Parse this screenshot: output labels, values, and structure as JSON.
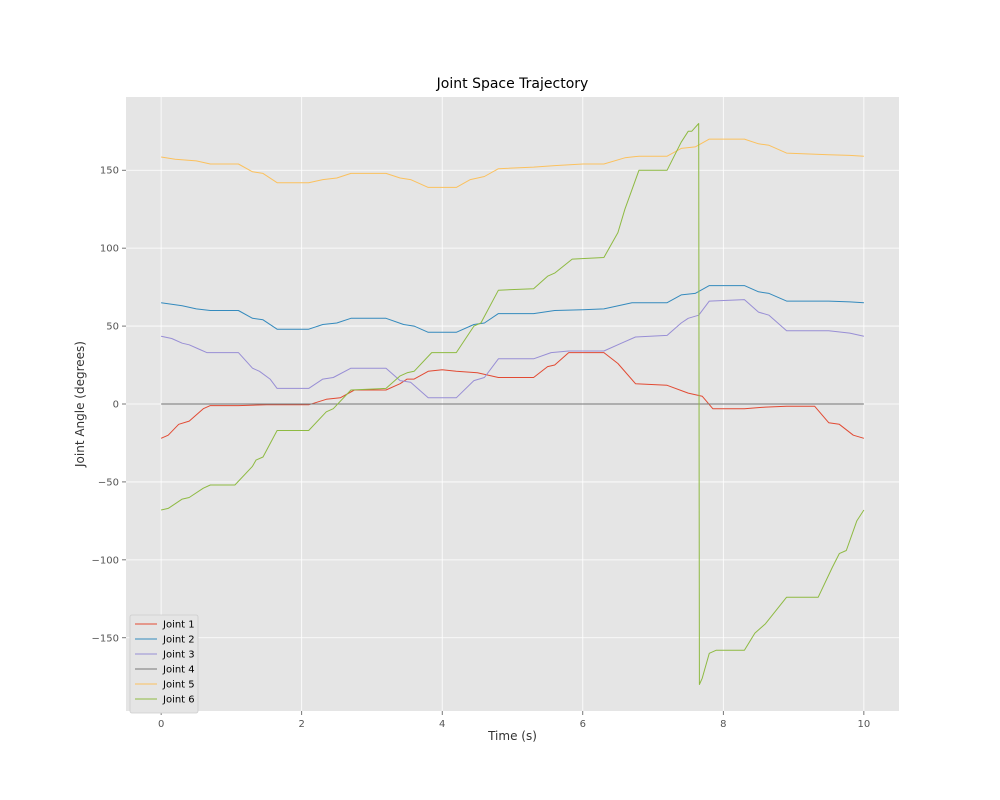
{
  "chart_data": {
    "type": "line",
    "title": "Joint Space Trajectory",
    "xlabel": "Time (s)",
    "ylabel": "Joint Angle (degrees)",
    "xlim": [
      -0.5,
      10.5
    ],
    "ylim": [
      -197,
      197
    ],
    "xticks": [
      0,
      2,
      4,
      6,
      8,
      10
    ],
    "yticks": [
      -150,
      -100,
      -50,
      0,
      50,
      100,
      150
    ],
    "xtick_labels": [
      "0",
      "2",
      "4",
      "6",
      "8",
      "10"
    ],
    "ytick_labels": [
      "−150",
      "−100",
      "−50",
      "0",
      "50",
      "100",
      "150"
    ],
    "grid": true,
    "legend_position": "lower-left",
    "background": "#e5e5e5",
    "series": [
      {
        "name": "Joint 1",
        "color": "#e24a33",
        "points": [
          [
            0,
            -22
          ],
          [
            0.1,
            -20
          ],
          [
            0.25,
            -13
          ],
          [
            0.4,
            -11
          ],
          [
            0.6,
            -3
          ],
          [
            0.7,
            -1
          ],
          [
            1.1,
            -1
          ],
          [
            1.5,
            -0.5
          ],
          [
            2.1,
            -0.5
          ],
          [
            2.35,
            3
          ],
          [
            2.55,
            4
          ],
          [
            2.75,
            9
          ],
          [
            3.2,
            9
          ],
          [
            3.4,
            13
          ],
          [
            3.5,
            16
          ],
          [
            3.6,
            16
          ],
          [
            3.8,
            21
          ],
          [
            4.0,
            22
          ],
          [
            4.2,
            21
          ],
          [
            4.5,
            20
          ],
          [
            4.8,
            17
          ],
          [
            5.3,
            17
          ],
          [
            5.5,
            24
          ],
          [
            5.6,
            25
          ],
          [
            5.8,
            33
          ],
          [
            6.3,
            33
          ],
          [
            6.5,
            26
          ],
          [
            6.75,
            13
          ],
          [
            7.2,
            12
          ],
          [
            7.5,
            7
          ],
          [
            7.7,
            5
          ],
          [
            7.85,
            -3
          ],
          [
            8.3,
            -3
          ],
          [
            8.6,
            -2
          ],
          [
            8.9,
            -1.5
          ],
          [
            9.3,
            -1.5
          ],
          [
            9.5,
            -12
          ],
          [
            9.65,
            -13
          ],
          [
            9.85,
            -20
          ],
          [
            10,
            -22
          ]
        ]
      },
      {
        "name": "Joint 2",
        "color": "#348abd",
        "points": [
          [
            0,
            65
          ],
          [
            0.3,
            63
          ],
          [
            0.5,
            61
          ],
          [
            0.7,
            60
          ],
          [
            1.1,
            60
          ],
          [
            1.3,
            55
          ],
          [
            1.45,
            54
          ],
          [
            1.65,
            48
          ],
          [
            2.1,
            48
          ],
          [
            2.3,
            51
          ],
          [
            2.5,
            52
          ],
          [
            2.7,
            55
          ],
          [
            3.2,
            55
          ],
          [
            3.45,
            51
          ],
          [
            3.6,
            50
          ],
          [
            3.8,
            46
          ],
          [
            4.2,
            46
          ],
          [
            4.45,
            51
          ],
          [
            4.6,
            52
          ],
          [
            4.8,
            58
          ],
          [
            5.3,
            58
          ],
          [
            5.6,
            60
          ],
          [
            6.0,
            60.5
          ],
          [
            6.3,
            61
          ],
          [
            6.7,
            65
          ],
          [
            7.2,
            65
          ],
          [
            7.4,
            70
          ],
          [
            7.6,
            71
          ],
          [
            7.8,
            76
          ],
          [
            8.3,
            76
          ],
          [
            8.5,
            72
          ],
          [
            8.65,
            71
          ],
          [
            8.9,
            66
          ],
          [
            9.5,
            66
          ],
          [
            9.8,
            65.5
          ],
          [
            10,
            65
          ]
        ]
      },
      {
        "name": "Joint 3",
        "color": "#988ed5",
        "points": [
          [
            0,
            43.5
          ],
          [
            0.15,
            42
          ],
          [
            0.3,
            39
          ],
          [
            0.4,
            38
          ],
          [
            0.55,
            35
          ],
          [
            0.65,
            33
          ],
          [
            1.1,
            33
          ],
          [
            1.3,
            23
          ],
          [
            1.4,
            21
          ],
          [
            1.55,
            16
          ],
          [
            1.65,
            10
          ],
          [
            2.1,
            10
          ],
          [
            2.3,
            16
          ],
          [
            2.45,
            17
          ],
          [
            2.7,
            23
          ],
          [
            3.2,
            23
          ],
          [
            3.4,
            15
          ],
          [
            3.55,
            14
          ],
          [
            3.8,
            4
          ],
          [
            4.2,
            4
          ],
          [
            4.45,
            15
          ],
          [
            4.6,
            17
          ],
          [
            4.8,
            29
          ],
          [
            5.3,
            29
          ],
          [
            5.55,
            33
          ],
          [
            5.8,
            34
          ],
          [
            6.0,
            34
          ],
          [
            6.3,
            34
          ],
          [
            6.55,
            39
          ],
          [
            6.75,
            43
          ],
          [
            7.2,
            44
          ],
          [
            7.4,
            52
          ],
          [
            7.5,
            55
          ],
          [
            7.65,
            57
          ],
          [
            7.8,
            66
          ],
          [
            8.3,
            67
          ],
          [
            8.5,
            59
          ],
          [
            8.65,
            57
          ],
          [
            8.9,
            47
          ],
          [
            9.5,
            47
          ],
          [
            9.8,
            45.5
          ],
          [
            10,
            43.5
          ]
        ]
      },
      {
        "name": "Joint 4",
        "color": "#777777",
        "points": [
          [
            0,
            0
          ],
          [
            10,
            0
          ]
        ]
      },
      {
        "name": "Joint 5",
        "color": "#fbc15e",
        "points": [
          [
            0,
            158.5
          ],
          [
            0.2,
            157
          ],
          [
            0.5,
            156
          ],
          [
            0.7,
            154
          ],
          [
            1.1,
            154
          ],
          [
            1.3,
            149
          ],
          [
            1.45,
            148
          ],
          [
            1.65,
            142
          ],
          [
            2.1,
            142
          ],
          [
            2.3,
            144
          ],
          [
            2.5,
            145
          ],
          [
            2.7,
            148
          ],
          [
            3.2,
            148
          ],
          [
            3.4,
            145
          ],
          [
            3.55,
            144
          ],
          [
            3.8,
            139
          ],
          [
            4.2,
            139
          ],
          [
            4.4,
            144
          ],
          [
            4.6,
            146
          ],
          [
            4.8,
            151
          ],
          [
            5.3,
            152
          ],
          [
            5.6,
            153
          ],
          [
            6.0,
            154
          ],
          [
            6.3,
            154
          ],
          [
            6.6,
            158
          ],
          [
            6.8,
            159
          ],
          [
            7.2,
            159
          ],
          [
            7.4,
            164
          ],
          [
            7.6,
            165
          ],
          [
            7.8,
            170
          ],
          [
            8.3,
            170
          ],
          [
            8.5,
            167
          ],
          [
            8.65,
            166
          ],
          [
            8.9,
            161
          ],
          [
            9.5,
            160
          ],
          [
            9.8,
            159.5
          ],
          [
            10,
            159
          ]
        ]
      },
      {
        "name": "Joint 6",
        "color": "#8eba42",
        "points": [
          [
            0,
            -68
          ],
          [
            0.1,
            -67
          ],
          [
            0.3,
            -61
          ],
          [
            0.4,
            -60
          ],
          [
            0.6,
            -54
          ],
          [
            0.7,
            -52
          ],
          [
            1.05,
            -52
          ],
          [
            1.3,
            -40
          ],
          [
            1.35,
            -36
          ],
          [
            1.45,
            -34
          ],
          [
            1.65,
            -17
          ],
          [
            2.1,
            -17
          ],
          [
            2.35,
            -5
          ],
          [
            2.45,
            -3
          ],
          [
            2.7,
            9
          ],
          [
            3.2,
            10
          ],
          [
            3.4,
            18
          ],
          [
            3.5,
            20
          ],
          [
            3.6,
            21
          ],
          [
            3.85,
            33
          ],
          [
            4.2,
            33
          ],
          [
            4.45,
            50
          ],
          [
            4.55,
            52
          ],
          [
            4.8,
            73
          ],
          [
            5.3,
            74
          ],
          [
            5.5,
            82
          ],
          [
            5.6,
            84
          ],
          [
            5.85,
            93
          ],
          [
            6.3,
            94
          ],
          [
            6.5,
            110
          ],
          [
            6.6,
            125
          ],
          [
            6.8,
            150
          ],
          [
            7.2,
            150
          ],
          [
            7.4,
            168
          ],
          [
            7.5,
            175
          ],
          [
            7.55,
            175
          ],
          [
            7.65,
            180
          ],
          [
            7.66,
            -180
          ],
          [
            7.7,
            -176
          ],
          [
            7.8,
            -160
          ],
          [
            7.9,
            -158
          ],
          [
            8.3,
            -158
          ],
          [
            8.45,
            -147
          ],
          [
            8.6,
            -141
          ],
          [
            8.9,
            -124
          ],
          [
            9.35,
            -124
          ],
          [
            9.55,
            -105
          ],
          [
            9.65,
            -96
          ],
          [
            9.75,
            -94
          ],
          [
            9.9,
            -75
          ],
          [
            10,
            -68
          ]
        ]
      }
    ]
  }
}
